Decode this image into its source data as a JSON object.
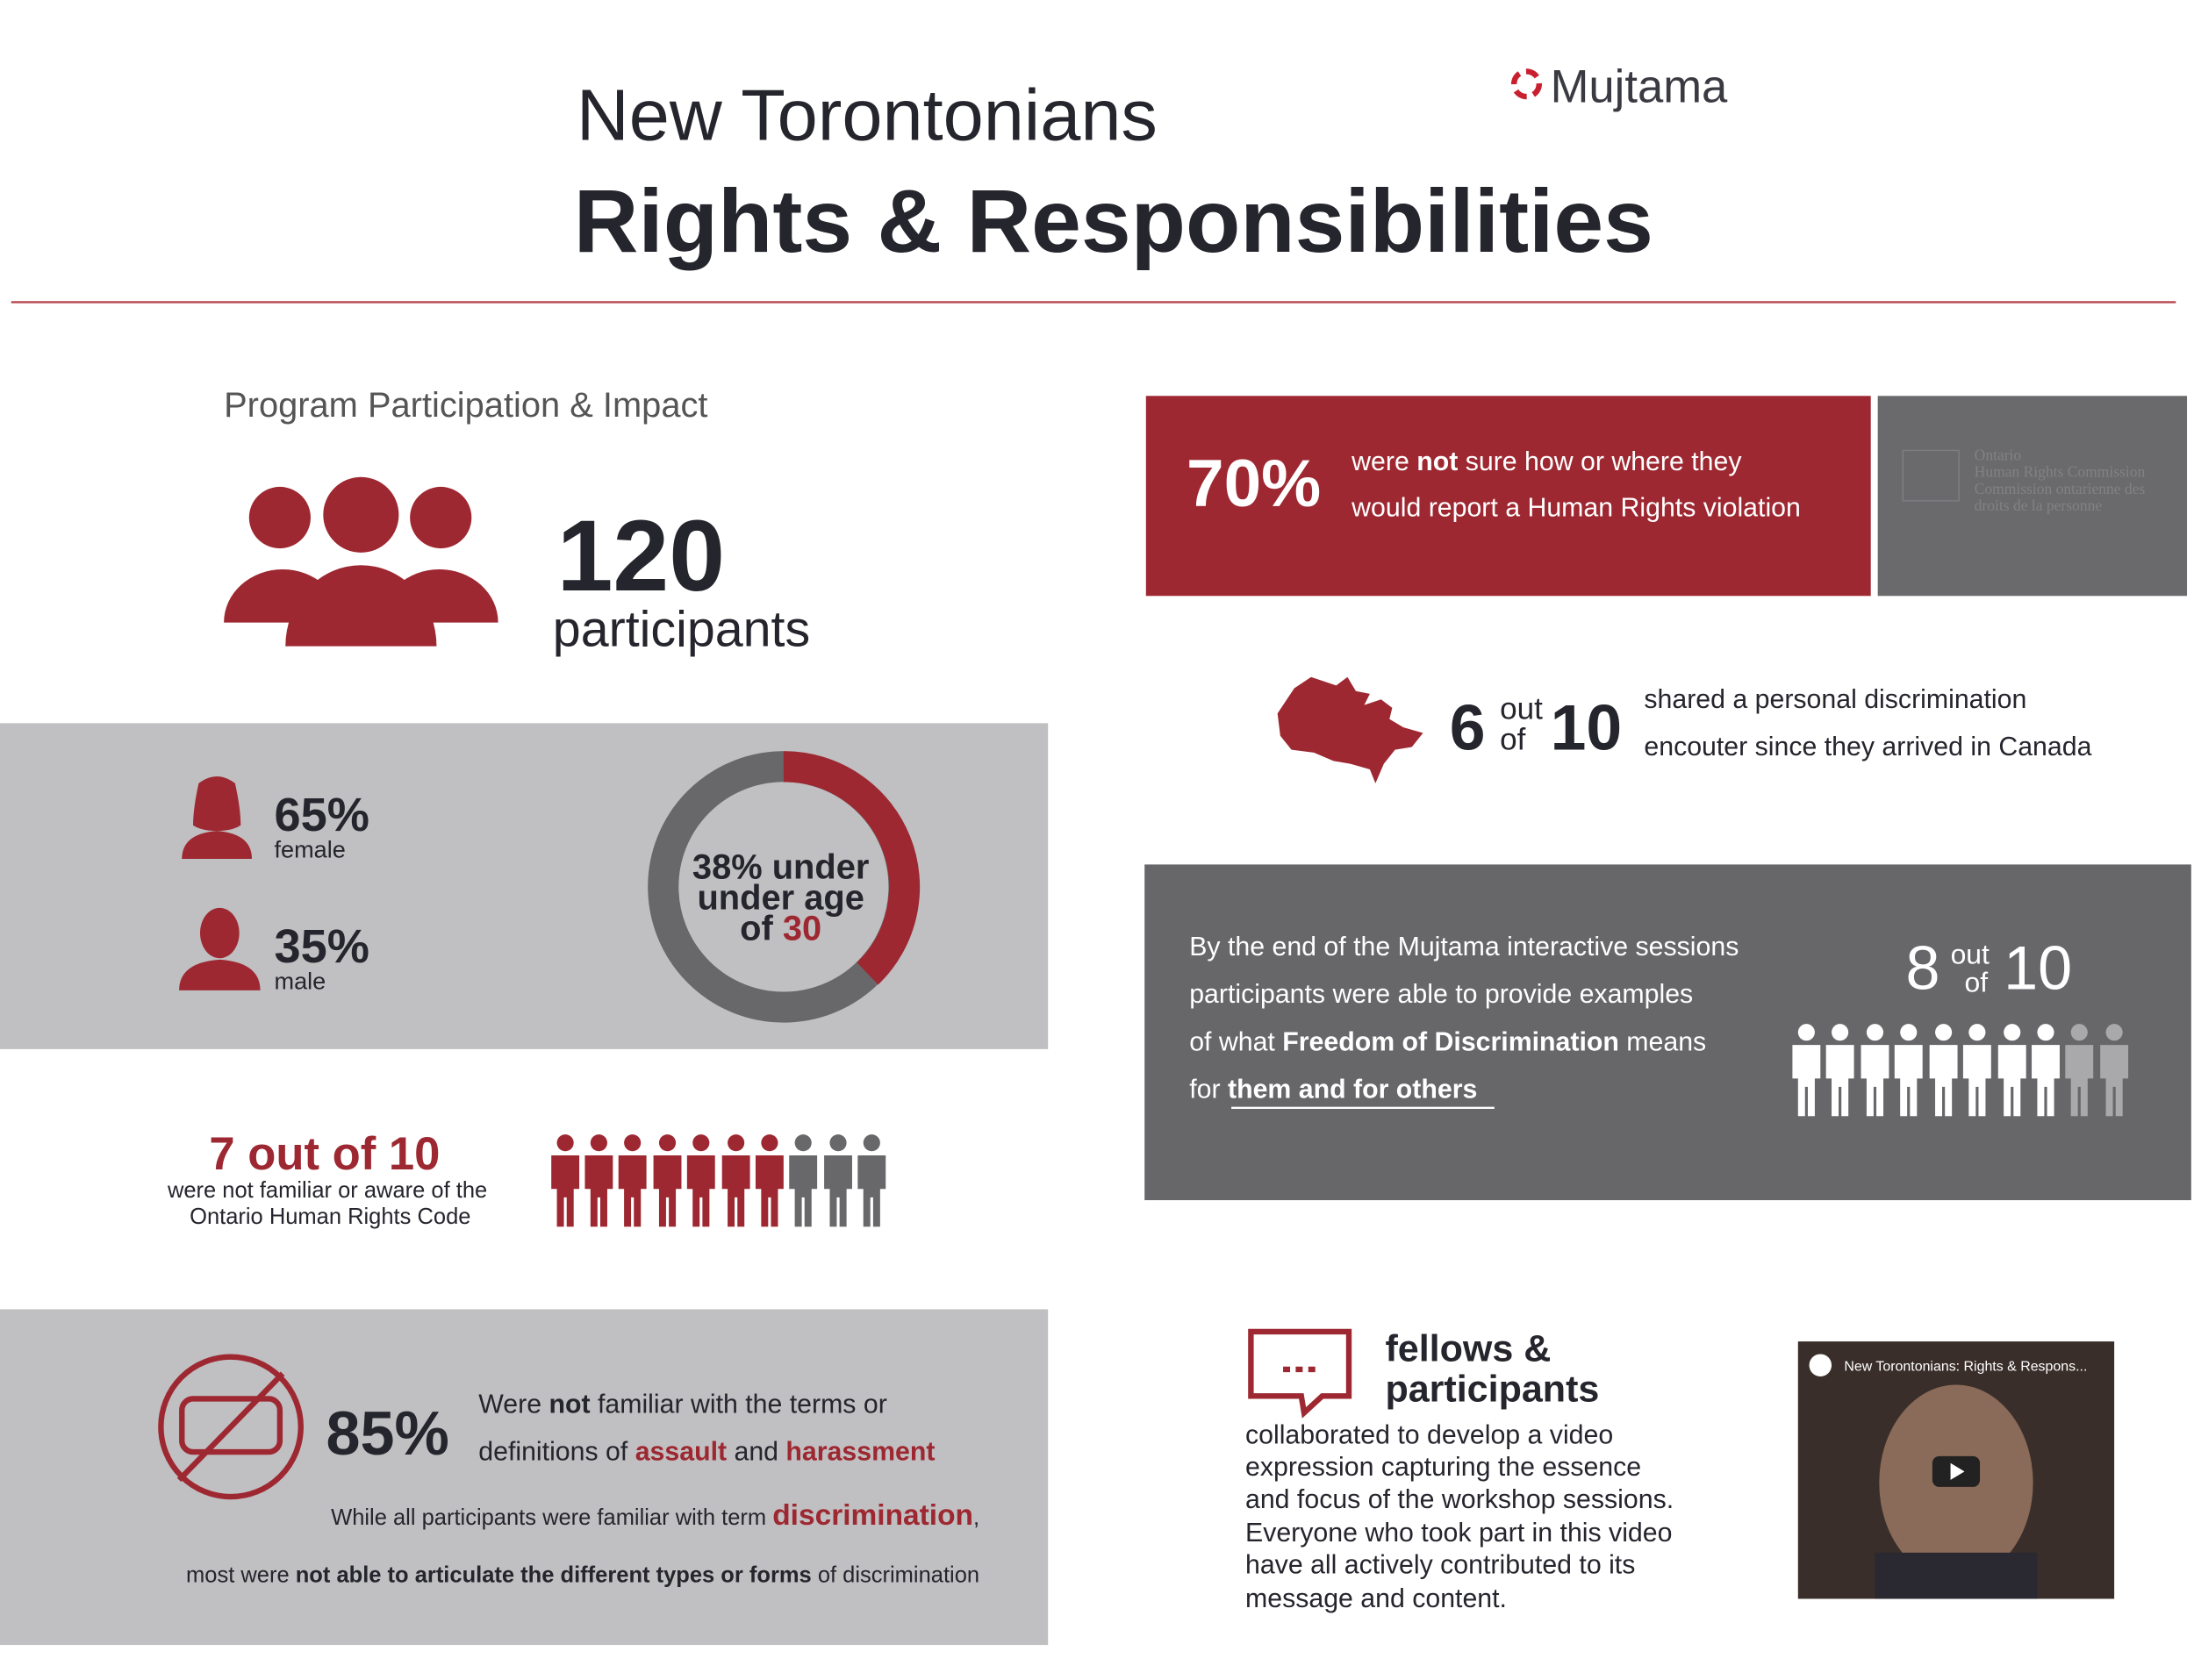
{
  "header": {
    "subtitle": "New Torontonians",
    "title": "Rights & Responsibilities",
    "logo": "Mujtama"
  },
  "participation": {
    "heading": "Program Participation & Impact",
    "count": "120",
    "count_label": "participants"
  },
  "gender": {
    "female_pct": "65%",
    "female": "female",
    "male_pct": "35%",
    "male": "male"
  },
  "age": {
    "line1": "38% under",
    "line2": "under age",
    "line3_prefix": "of",
    "line3_value": "30"
  },
  "awareness": {
    "stat": "7 out of 10",
    "line1": "were not familiar or aware of the",
    "line2": "Ontario Human Rights Code"
  },
  "harassment": {
    "stat": "85%",
    "line1": [
      "Were ",
      "not",
      " familiar with the terms or"
    ],
    "line2": [
      "definitions of ",
      "assault",
      " and ",
      "harassment"
    ],
    "line3": [
      "While all participants were familiar with term ",
      "discrimination",
      ","
    ],
    "line4": [
      "most were ",
      "not able to articulate the different types or forms",
      " of discrimination"
    ]
  },
  "reporting": {
    "stat": "70%",
    "line1": [
      "were ",
      "not",
      " sure how or where they"
    ],
    "line2": "would report a Human Rights violation",
    "partner": [
      "Ontario",
      "Human Rights Commission",
      "Commission ontarienne des",
      "droits de la personne"
    ]
  },
  "encounter": {
    "num": "6",
    "out": "out",
    "of": "of",
    "den": "10",
    "line1": "shared a personal discrimination",
    "line2": "encouter since they arrived in Canada"
  },
  "sessions": {
    "line1": "By the end of the Mujtama interactive sessions",
    "line2": "participants were able to provide examples",
    "line3": [
      "of what ",
      "Freedom of Discrimination",
      " means"
    ],
    "line4": [
      "for ",
      "them and for others"
    ],
    "num": "8",
    "out": "out",
    "of": "of",
    "den": "10"
  },
  "video": {
    "heading1": "fellows &",
    "heading2": "participants",
    "lines": [
      "collaborated to develop a video",
      "expression capturing the essence",
      "and focus of the workshop sessions.",
      "Everyone who took part in this video",
      "have all actively contributed to its",
      "message and content."
    ],
    "thumbnail_title": "New Torontonians: Rights & Respons..."
  }
}
